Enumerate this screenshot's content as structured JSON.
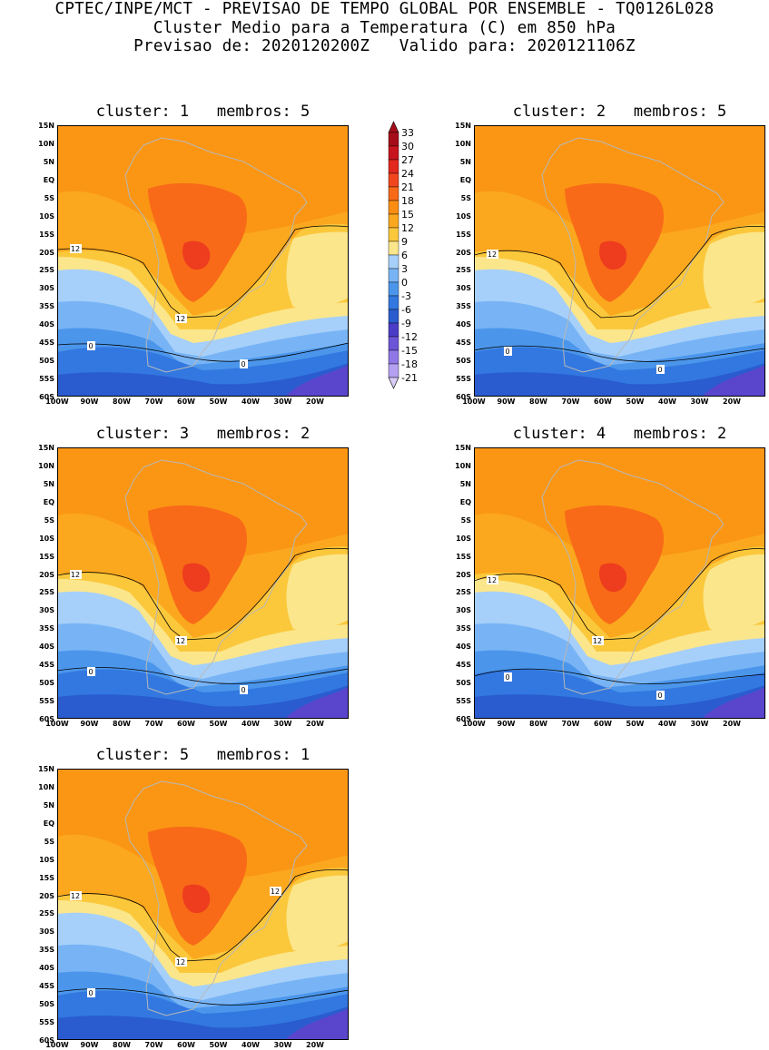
{
  "header": {
    "line1": "CPTEC/INPE/MCT - PREVISAO DE TEMPO GLOBAL POR ENSEMBLE - TQ0126L028",
    "line2": "Cluster Medio para a Temperatura (C) em 850 hPa",
    "line3": "Previsao de: 2020120200Z   Valido para: 2020121106Z"
  },
  "lat_labels": [
    "15N",
    "10N",
    "5N",
    "EQ",
    "5S",
    "10S",
    "15S",
    "20S",
    "25S",
    "30S",
    "35S",
    "40S",
    "45S",
    "50S",
    "55S",
    "60S"
  ],
  "lon_labels": [
    "100W",
    "90W",
    "80W",
    "70W",
    "60W",
    "50W",
    "40W",
    "30W",
    "20W"
  ],
  "colorbar": {
    "labels": [
      "33",
      "30",
      "27",
      "24",
      "21",
      "18",
      "15",
      "12",
      "9",
      "6",
      "3",
      "0",
      "-3",
      "-6",
      "-9",
      "-12",
      "-15",
      "-18",
      "-21"
    ],
    "colors": [
      "#a50d18",
      "#c8141e",
      "#e3281e",
      "#f1461e",
      "#f86a18",
      "#fb8e12",
      "#fba81e",
      "#fbc83c",
      "#fbe68c",
      "#a6d0fa",
      "#78b4f5",
      "#4b96eb",
      "#3278e0",
      "#2a5ccf",
      "#4b3cc8",
      "#6d55d8",
      "#8f78e6",
      "#b4a0f0",
      "#d8ccf8"
    ],
    "palette": {
      "yellow": "#fbe68c",
      "gold": "#fbc83c",
      "orange_light": "#fba81e",
      "orange": "#fb9614",
      "orange_dark": "#f86a18",
      "red": "#ed3c1e",
      "blue_light": "#a6d0fa",
      "blue": "#78b4f5",
      "blue_mid": "#4b96eb",
      "blue_dark": "#3278e0",
      "navy": "#2a5ccf",
      "purple": "#5a46cc"
    }
  },
  "panels": [
    {
      "title": "cluster: 1   membros: 5",
      "labels12": [
        "12",
        "12"
      ],
      "labels0": [
        "0",
        "0"
      ]
    },
    {
      "title": "cluster: 2   membros: 5",
      "labels12": [
        "12"
      ],
      "labels0": [
        "0",
        "0"
      ]
    },
    {
      "title": "cluster: 3   membros: 2",
      "labels12": [
        "12",
        "12"
      ],
      "labels0": [
        "0",
        "0"
      ]
    },
    {
      "title": "cluster: 4   membros: 2",
      "labels12": [
        "12",
        "12"
      ],
      "labels0": [
        "0",
        "0"
      ]
    },
    {
      "title": "cluster: 5   membros: 1",
      "labels12": [
        "12",
        "12",
        "12"
      ],
      "labels0": [
        "0"
      ]
    }
  ]
}
